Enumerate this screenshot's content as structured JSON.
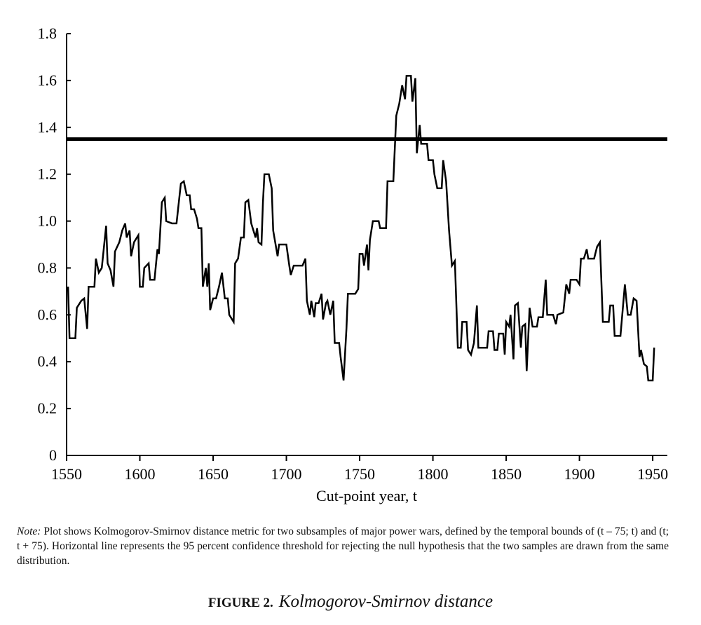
{
  "chart_data": {
    "type": "line",
    "x_label": "Cut-point year, t",
    "x": [
      1551,
      1552,
      1556,
      1557,
      1560,
      1562,
      1564,
      1565,
      1569,
      1570,
      1572,
      1574,
      1577,
      1578,
      1580,
      1582,
      1583,
      1586,
      1588,
      1590,
      1591,
      1593,
      1594,
      1596,
      1599,
      1600,
      1602,
      1603,
      1606,
      1607,
      1610,
      1612,
      1613,
      1615,
      1617,
      1618,
      1622,
      1625,
      1628,
      1630,
      1632,
      1634,
      1635,
      1637,
      1639,
      1640,
      1642,
      1643,
      1645,
      1646,
      1647,
      1648,
      1650,
      1652,
      1654,
      1656,
      1658,
      1660,
      1661,
      1664,
      1665,
      1667,
      1669,
      1671,
      1672,
      1674,
      1676,
      1679,
      1680,
      1681,
      1683,
      1684,
      1685,
      1688,
      1690,
      1691,
      1694,
      1695,
      1700,
      1702,
      1703,
      1705,
      1711,
      1713,
      1714,
      1716,
      1717,
      1719,
      1720,
      1722,
      1724,
      1725,
      1727,
      1728,
      1730,
      1732,
      1733,
      1736,
      1737,
      1739,
      1741,
      1742,
      1747,
      1749,
      1750,
      1752,
      1753,
      1755,
      1756,
      1757,
      1759,
      1763,
      1764,
      1768,
      1769,
      1773,
      1775,
      1777,
      1779,
      1781,
      1782,
      1785,
      1786,
      1788,
      1789,
      1791,
      1792,
      1796,
      1797,
      1800,
      1801,
      1803,
      1806,
      1807,
      1809,
      1811,
      1813,
      1815,
      1817,
      1819,
      1820,
      1823,
      1824,
      1826,
      1828,
      1830,
      1831,
      1837,
      1838,
      1841,
      1842,
      1844,
      1845,
      1848,
      1849,
      1850,
      1852,
      1853,
      1855,
      1856,
      1858,
      1860,
      1861,
      1863,
      1864,
      1866,
      1868,
      1871,
      1872,
      1875,
      1877,
      1878,
      1882,
      1884,
      1885,
      1889,
      1891,
      1893,
      1894,
      1898,
      1900,
      1901,
      1903,
      1905,
      1906,
      1910,
      1912,
      1914,
      1916,
      1920,
      1921,
      1923,
      1924,
      1926,
      1928,
      1931,
      1933,
      1935,
      1937,
      1939,
      1941,
      1942,
      1944,
      1946,
      1947,
      1950,
      1951
    ],
    "values": [
      0.72,
      0.5,
      0.5,
      0.63,
      0.66,
      0.67,
      0.54,
      0.72,
      0.72,
      0.84,
      0.78,
      0.8,
      0.98,
      0.82,
      0.79,
      0.72,
      0.87,
      0.91,
      0.96,
      0.99,
      0.93,
      0.96,
      0.85,
      0.91,
      0.94,
      0.72,
      0.72,
      0.8,
      0.82,
      0.75,
      0.75,
      0.88,
      0.86,
      1.08,
      1.1,
      1.0,
      0.99,
      0.99,
      1.16,
      1.17,
      1.11,
      1.11,
      1.05,
      1.05,
      1.01,
      0.97,
      0.97,
      0.72,
      0.8,
      0.72,
      0.82,
      0.62,
      0.67,
      0.67,
      0.72,
      0.78,
      0.67,
      0.67,
      0.6,
      0.57,
      0.82,
      0.84,
      0.93,
      0.93,
      1.08,
      1.09,
      0.99,
      0.93,
      0.97,
      0.91,
      0.9,
      1.08,
      1.2,
      1.2,
      1.14,
      0.96,
      0.85,
      0.9,
      0.9,
      0.81,
      0.77,
      0.81,
      0.81,
      0.84,
      0.66,
      0.6,
      0.66,
      0.59,
      0.65,
      0.65,
      0.69,
      0.58,
      0.65,
      0.66,
      0.6,
      0.66,
      0.48,
      0.48,
      0.42,
      0.32,
      0.54,
      0.69,
      0.69,
      0.71,
      0.86,
      0.86,
      0.81,
      0.9,
      0.79,
      0.92,
      1.0,
      1.0,
      0.97,
      0.97,
      1.17,
      1.17,
      1.45,
      1.5,
      1.58,
      1.52,
      1.62,
      1.62,
      1.51,
      1.61,
      1.29,
      1.41,
      1.33,
      1.33,
      1.26,
      1.26,
      1.2,
      1.14,
      1.14,
      1.26,
      1.17,
      0.96,
      0.81,
      0.83,
      0.46,
      0.46,
      0.57,
      0.57,
      0.45,
      0.43,
      0.48,
      0.64,
      0.46,
      0.46,
      0.53,
      0.53,
      0.45,
      0.45,
      0.52,
      0.52,
      0.43,
      0.57,
      0.55,
      0.6,
      0.41,
      0.64,
      0.65,
      0.46,
      0.55,
      0.56,
      0.36,
      0.63,
      0.55,
      0.55,
      0.59,
      0.59,
      0.75,
      0.6,
      0.6,
      0.56,
      0.6,
      0.61,
      0.73,
      0.69,
      0.75,
      0.75,
      0.73,
      0.84,
      0.84,
      0.88,
      0.84,
      0.84,
      0.89,
      0.91,
      0.57,
      0.57,
      0.64,
      0.64,
      0.51,
      0.51,
      0.51,
      0.73,
      0.6,
      0.6,
      0.67,
      0.66,
      0.42,
      0.45,
      0.39,
      0.38,
      0.32,
      0.32,
      0.46
    ],
    "color": "#000000",
    "threshold": 1.35,
    "xlim": [
      1550,
      1960
    ],
    "xticks": [
      1550,
      1600,
      1650,
      1700,
      1750,
      1800,
      1850,
      1900,
      1950
    ],
    "ylim": [
      0,
      1.8
    ],
    "yticks": [
      0,
      0.2,
      0.4,
      0.6,
      0.8,
      {
        "value": 1,
        "label": "1.0"
      },
      1.2,
      1.4,
      1.6,
      1.8
    ]
  },
  "note": {
    "label": "Note:",
    "text": "Plot shows Kolmogorov-Smirnov distance metric for two subsamples of major power wars, defined by the temporal bounds of (t – 75; t) and (t; t + 75). Horizontal line represents the 95 percent confidence threshold for rejecting the null hypothesis that the two samples are drawn from the same distribution."
  },
  "caption": {
    "label": "FIGURE 2.",
    "title": "Kolmogorov-Smirnov distance"
  }
}
